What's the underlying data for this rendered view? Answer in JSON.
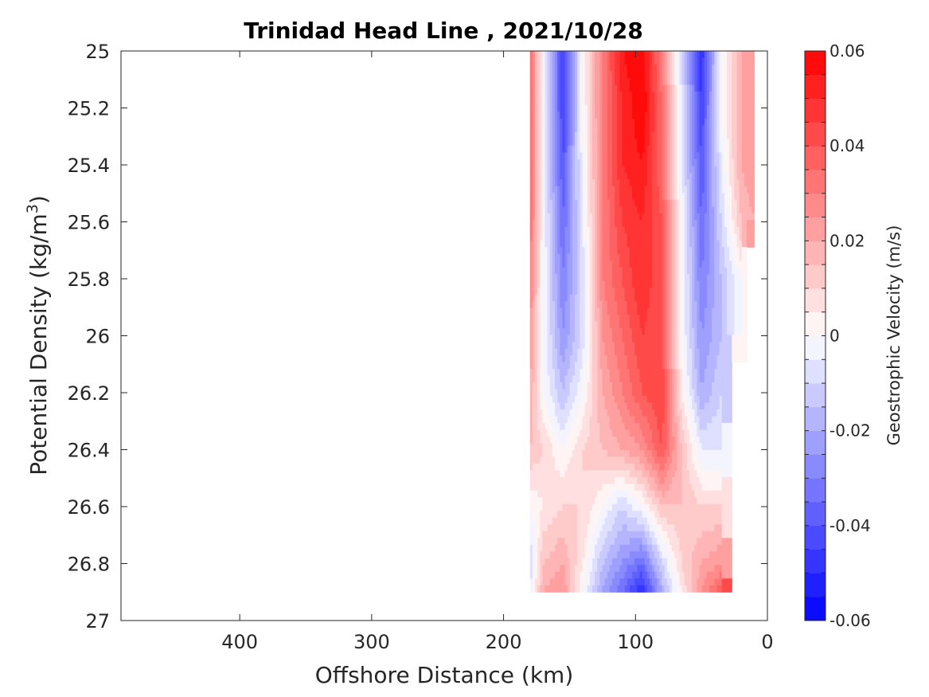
{
  "chart_data": {
    "type": "heatmap",
    "title": "Trinidad Head Line , 2021/10/28",
    "xlabel": "Offshore Distance (km)",
    "ylabel": "Potential Density (kg/m",
    "ylabel_sup": "3",
    "ylabel_close": ")",
    "colorbar_label": "Geostrophic Velocity (m/s)",
    "xlim": [
      490,
      0
    ],
    "ylim": [
      25,
      27
    ],
    "x_ticks": [
      400,
      300,
      200,
      100,
      0
    ],
    "x_tick_labels": [
      "400",
      "300",
      "200",
      "100",
      "0"
    ],
    "y_ticks": [
      25,
      25.2,
      25.4,
      25.6,
      25.8,
      26,
      26.2,
      26.4,
      26.6,
      26.8,
      27
    ],
    "y_tick_labels": [
      "25",
      "25.2",
      "25.4",
      "25.6",
      "25.8",
      "26",
      "26.2",
      "26.4",
      "26.6",
      "26.8",
      "27"
    ],
    "clim": [
      -0.06,
      0.06
    ],
    "colorbar_ticks": [
      0.06,
      0.04,
      0.02,
      0,
      -0.02,
      -0.04,
      -0.06
    ],
    "colorbar_tick_labels": [
      "0.06",
      "0.04",
      "0.02",
      "0",
      "-0.02",
      "-0.04",
      "-0.06"
    ],
    "colormap": {
      "negative": "#0000ff",
      "zero": "#ffffff",
      "positive": "#ff0000"
    },
    "contour_levels": 24,
    "x": [
      180,
      170,
      155,
      140,
      125,
      110,
      95,
      80,
      65,
      50,
      35,
      20,
      10
    ],
    "y": [
      25.0,
      25.2,
      25.4,
      25.6,
      25.8,
      26.0,
      26.2,
      26.4,
      26.6,
      26.8,
      26.9
    ],
    "values": [
      [
        0.035,
        0.0,
        -0.045,
        0.0,
        0.03,
        0.055,
        0.06,
        0.03,
        -0.01,
        -0.05,
        0.0,
        0.02,
        0.025
      ],
      [
        0.035,
        0.0,
        -0.045,
        0.0,
        0.03,
        0.05,
        0.06,
        0.035,
        -0.005,
        -0.045,
        0.0,
        0.02,
        0.025
      ],
      [
        0.035,
        0.0,
        -0.04,
        -0.002,
        0.03,
        0.05,
        0.055,
        0.035,
        -0.005,
        -0.04,
        -0.005,
        0.02,
        0.025
      ],
      [
        0.035,
        0.0,
        -0.035,
        -0.005,
        0.03,
        0.045,
        0.05,
        0.04,
        0.0,
        -0.035,
        -0.01,
        0.015,
        0.02
      ],
      [
        0.03,
        0.0,
        -0.03,
        -0.008,
        0.03,
        0.04,
        0.05,
        0.04,
        0.0,
        -0.03,
        -0.015,
        0.0,
        null
      ],
      [
        0.025,
        0.0,
        -0.025,
        -0.008,
        0.025,
        0.035,
        0.045,
        0.04,
        0.0,
        -0.025,
        -0.015,
        0.0,
        null
      ],
      [
        0.02,
        0.0,
        -0.015,
        0.0,
        0.02,
        0.03,
        0.04,
        0.045,
        0.005,
        -0.02,
        -0.01,
        null,
        null
      ],
      [
        0.015,
        0.01,
        0.0,
        0.01,
        0.015,
        0.02,
        0.025,
        0.04,
        0.015,
        -0.005,
        -0.005,
        null,
        null
      ],
      [
        0.0,
        0.005,
        0.01,
        0.01,
        0.0,
        -0.01,
        0.0,
        0.015,
        0.015,
        0.01,
        0.01,
        null,
        null
      ],
      [
        -0.01,
        0.015,
        0.02,
        0.005,
        -0.015,
        -0.025,
        -0.035,
        -0.01,
        0.01,
        0.02,
        0.025,
        null,
        null
      ],
      [
        -0.005,
        0.02,
        0.025,
        0.0,
        -0.02,
        -0.035,
        -0.05,
        -0.02,
        0.005,
        0.025,
        0.04,
        null,
        null
      ]
    ]
  }
}
